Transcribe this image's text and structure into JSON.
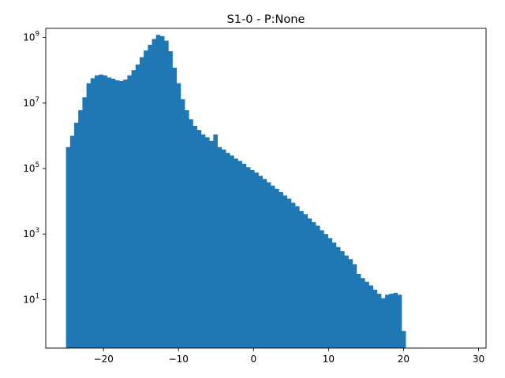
{
  "chart_data": {
    "type": "bar",
    "title": "S1-0 - P:None",
    "xlabel": "",
    "ylabel": "",
    "yscale": "log",
    "xlim": [
      -27.7,
      31.0
    ],
    "ylim": [
      0.33,
      1900000000.0
    ],
    "x_ticks": [
      {
        "value": -20,
        "label": "−20"
      },
      {
        "value": -10,
        "label": "−10"
      },
      {
        "value": 0,
        "label": "0"
      },
      {
        "value": 10,
        "label": "10"
      },
      {
        "value": 20,
        "label": "20"
      },
      {
        "value": 30,
        "label": "30"
      }
    ],
    "y_ticks": [
      {
        "value": 10,
        "base": "10",
        "exp": "1"
      },
      {
        "value": 1000,
        "base": "10",
        "exp": "3"
      },
      {
        "value": 100000,
        "base": "10",
        "exp": "5"
      },
      {
        "value": 10000000,
        "base": "10",
        "exp": "7"
      },
      {
        "value": 1000000000,
        "base": "10",
        "exp": "9"
      }
    ],
    "bar_color": "#1f77b4",
    "bin_start": -25.0,
    "bin_width": 0.5454545,
    "values": [
      450000,
      1000000,
      2500000,
      6000000,
      15000000,
      40000000,
      57000000,
      70000000,
      74000000,
      70000000,
      60000000,
      55000000,
      49000000,
      47000000,
      52000000,
      70000000,
      100000000,
      150000000,
      250000000,
      400000000,
      600000000,
      900000000,
      1200000000,
      1100000000,
      800000000,
      380000000,
      120000000,
      40000000,
      13000000,
      6000000,
      3200000,
      2000000,
      1500000,
      1100000,
      900000,
      700000,
      1100000,
      450000,
      380000,
      300000,
      250000,
      200000,
      170000,
      140000,
      110000,
      90000,
      75000,
      60000,
      48000,
      38000,
      30000,
      24000,
      19000,
      15000,
      12000,
      9000,
      7000,
      5000,
      4000,
      3000,
      2300,
      1800,
      1300,
      1000,
      750,
      550,
      400,
      300,
      220,
      170,
      120,
      60,
      45,
      35,
      27,
      20,
      15,
      11,
      14,
      15,
      16,
      14,
      1.1
    ]
  }
}
